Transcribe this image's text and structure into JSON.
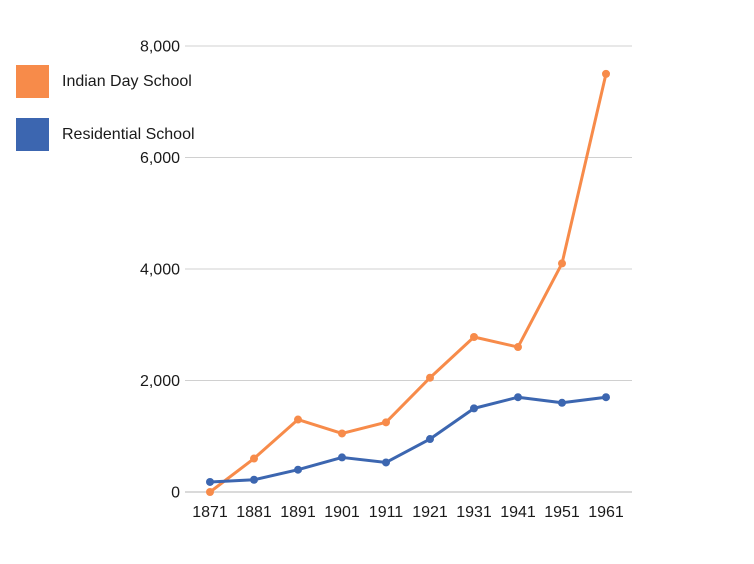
{
  "chart_data": {
    "type": "line",
    "title": "",
    "xlabel": "",
    "ylabel": "",
    "categories": [
      "1871",
      "1881",
      "1891",
      "1901",
      "1911",
      "1921",
      "1931",
      "1941",
      "1951",
      "1961"
    ],
    "series": [
      {
        "name": "Indian Day School",
        "color": "#f78b4a",
        "values": [
          0,
          600,
          1300,
          1050,
          1250,
          2050,
          2780,
          2600,
          4100,
          7500
        ]
      },
      {
        "name": "Residential School",
        "color": "#3c66b0",
        "values": [
          180,
          220,
          400,
          620,
          530,
          950,
          1500,
          1700,
          1600,
          1700
        ]
      }
    ],
    "ylim": [
      0,
      8000
    ],
    "yticks": [
      0,
      2000,
      4000,
      6000,
      8000
    ],
    "ytick_labels": [
      "0",
      "2,000",
      "4,000",
      "6,000",
      "8,000"
    ],
    "grid": true,
    "legend_position": "top-left",
    "marker": "circle"
  },
  "colors": {
    "background": "#ffffff",
    "grid": "#d0d0d0",
    "axis": "#b4b4b4",
    "text": "#1a1a1a"
  }
}
